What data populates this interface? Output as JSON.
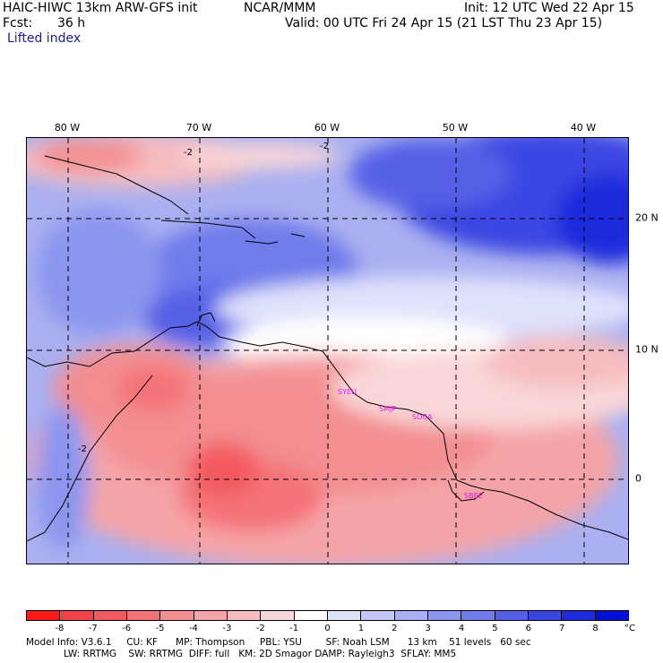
{
  "header": {
    "model": "HAIC-HIWC 13km ARW-GFS init",
    "org": "NCAR/MMM",
    "init": "Init: 12 UTC Wed 22 Apr 15",
    "fcst_label": "Fcst:",
    "fcst_value": "36 h",
    "valid": "Valid: 00 UTC Fri 24 Apr 15 (21 LST Thu 23 Apr 15)",
    "field": "Lifted index"
  },
  "map": {
    "lon_labels": [
      "80 W",
      "70 W",
      "60 W",
      "50 W",
      "40 W"
    ],
    "lat_labels": [
      "20 N",
      "10 N",
      "0"
    ],
    "stations": [
      "SYEU",
      "SMJP",
      "SOCA",
      "SBBE"
    ],
    "contour_label": "-2"
  },
  "colorbar": {
    "ticks": [
      "-8",
      "-7",
      "-6",
      "-5",
      "-4",
      "-3",
      "-2",
      "-1",
      "0",
      "1",
      "2",
      "3",
      "4",
      "5",
      "6",
      "7",
      "8"
    ],
    "unit": "°C",
    "colors": [
      "#ff1a1a",
      "#f2424a",
      "#f35a5f",
      "#f47378",
      "#f38e91",
      "#f4a4a8",
      "#f6bdbf",
      "#f9d7d8",
      "#ffffff",
      "#dfe2fb",
      "#c3c8f6",
      "#a8aff2",
      "#8c96ee",
      "#717ceb",
      "#5660e6",
      "#3a46e2",
      "#1e2bdc",
      "#0010d5"
    ]
  },
  "footer": {
    "line1": "Model Info: V3.6.1     CU: KF      MP: Thompson     PBL: YSU        SF: Noah LSM      13 km    51 levels   60 sec",
    "line2": "LW: RRTMG    SW: RRTMG  DIFF: full   KM: 2D Smagor DAMP: Rayleigh3  SFLAY: MM5"
  }
}
